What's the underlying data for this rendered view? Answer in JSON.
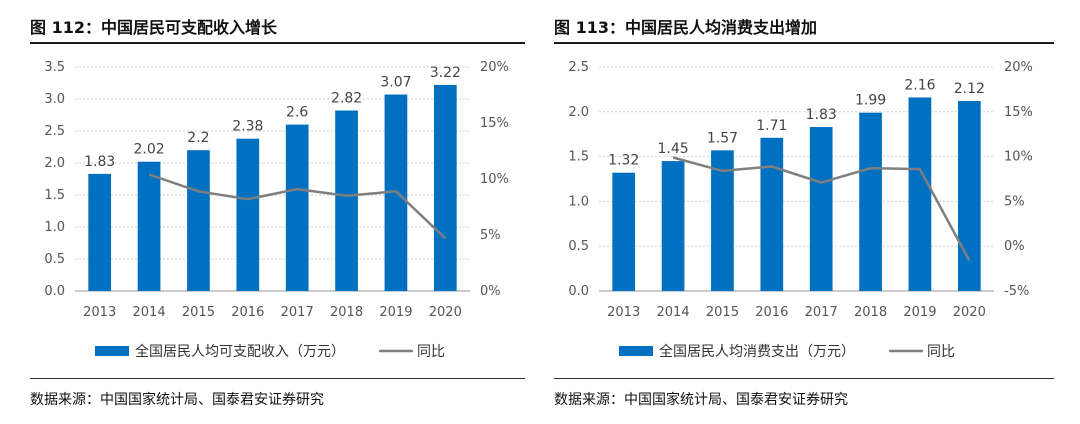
{
  "colors": {
    "bar": "#0070C0",
    "line": "#7F7F7F",
    "grid": "#D0D0D0"
  },
  "chart_data": [
    {
      "type": "bar",
      "title": "图 112：中国居民可支配收入增长",
      "source": "数据来源：中国国家统计局、国泰君安证券研究",
      "categories": [
        "2013",
        "2014",
        "2015",
        "2016",
        "2017",
        "2018",
        "2019",
        "2020"
      ],
      "series": [
        {
          "name": "全国居民人均可支配收入（万元）",
          "type": "bar",
          "axis": "left",
          "values": [
            1.83,
            2.02,
            2.2,
            2.38,
            2.6,
            2.82,
            3.07,
            3.22
          ],
          "labels": [
            "1.83",
            "2.02",
            "2.2",
            "2.38",
            "2.6",
            "2.82",
            "3.07",
            "3.22"
          ]
        },
        {
          "name": "同比",
          "type": "line",
          "axis": "right",
          "values": [
            null,
            10.4,
            8.9,
            8.2,
            9.1,
            8.5,
            8.9,
            4.7
          ]
        }
      ],
      "yleft": {
        "min": 0,
        "max": 3.5,
        "ticks": [
          "0.0",
          "0.5",
          "1.0",
          "1.5",
          "2.0",
          "2.5",
          "3.0",
          "3.5"
        ]
      },
      "yright": {
        "min": 0,
        "max": 20,
        "ticks": [
          "0%",
          "5%",
          "10%",
          "15%",
          "20%"
        ]
      },
      "grid": true,
      "legend": "bottom"
    },
    {
      "type": "bar",
      "title": "图 113：中国居民人均消费支出增加",
      "source": "数据来源：中国国家统计局、国泰君安证券研究",
      "categories": [
        "2013",
        "2014",
        "2015",
        "2016",
        "2017",
        "2018",
        "2019",
        "2020"
      ],
      "series": [
        {
          "name": "全国居民人均消费支出（万元）",
          "type": "bar",
          "axis": "left",
          "values": [
            1.32,
            1.45,
            1.57,
            1.71,
            1.83,
            1.99,
            2.16,
            2.12
          ],
          "labels": [
            "1.32",
            "1.45",
            "1.57",
            "1.71",
            "1.83",
            "1.99",
            "2.16",
            "2.12"
          ]
        },
        {
          "name": "同比",
          "type": "line",
          "axis": "right",
          "values": [
            null,
            9.9,
            8.4,
            8.9,
            7.1,
            8.7,
            8.6,
            -1.6
          ]
        }
      ],
      "yleft": {
        "min": 0,
        "max": 2.5,
        "ticks": [
          "0.0",
          "0.5",
          "1.0",
          "1.5",
          "2.0",
          "2.5"
        ]
      },
      "yright": {
        "min": -5,
        "max": 20,
        "ticks": [
          "-5%",
          "0%",
          "5%",
          "10%",
          "15%",
          "20%"
        ]
      },
      "grid": true,
      "legend": "bottom"
    }
  ]
}
